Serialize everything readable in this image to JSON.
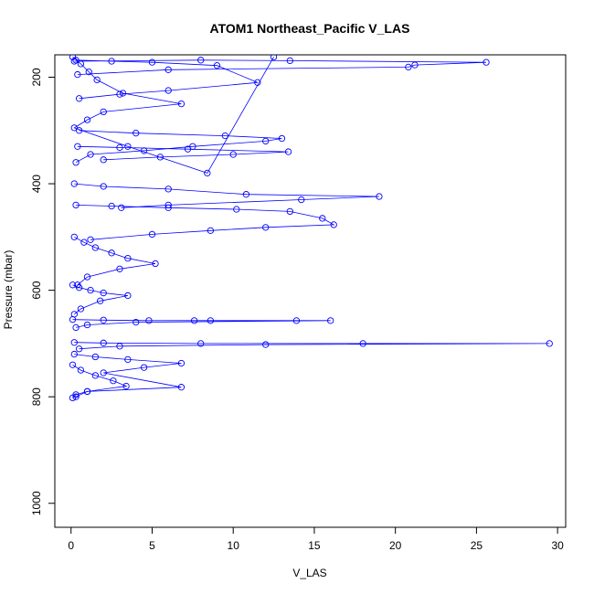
{
  "chart_data": {
    "type": "scatter",
    "title": "ATOM1 Northeast_Pacific V_LAS",
    "xlabel": "V_LAS",
    "ylabel": "Pressure (mbar)",
    "xlim": [
      -1,
      30.5
    ],
    "ylim": [
      1045,
      158
    ],
    "y_reversed": true,
    "x_ticks": [
      "0",
      "5",
      "10",
      "15",
      "20",
      "25",
      "30"
    ],
    "x_tick_values": [
      0,
      5,
      10,
      15,
      20,
      25,
      30
    ],
    "y_ticks": [
      "200",
      "400",
      "600",
      "800",
      "1000"
    ],
    "y_tick_values": [
      200,
      400,
      600,
      800,
      1000
    ],
    "grid": false,
    "legend": "none",
    "series_color": "#0000ff",
    "marker": "open-circle",
    "connected": true,
    "series": [
      {
        "x": [
          0.1,
          0.6,
          1.1,
          1.6,
          3.2,
          6.8,
          2.0,
          1.0,
          0.2,
          3.5,
          8.4,
          12.5
        ],
        "y": [
          162,
          175,
          190,
          205,
          230,
          250,
          265,
          280,
          295,
          330,
          380,
          162
        ]
      },
      {
        "x": [
          0.3,
          2.5,
          5.0,
          9.0,
          11.5,
          6.0,
          3.0,
          0.5
        ],
        "y": [
          168,
          170,
          172,
          178,
          210,
          225,
          232,
          240
        ]
      },
      {
        "x": [
          0.2,
          8.0,
          13.5,
          25.6,
          21.2,
          20.8,
          6.0,
          0.4
        ],
        "y": [
          170,
          168,
          169,
          172,
          177,
          181,
          186,
          195
        ]
      },
      {
        "x": [
          0.5,
          4.0,
          9.5,
          13.0,
          12.0,
          7.5,
          4.5,
          1.2,
          0.3
        ],
        "y": [
          300,
          305,
          310,
          315,
          320,
          330,
          338,
          345,
          360
        ]
      },
      {
        "x": [
          0.4,
          3.0,
          7.2,
          13.4,
          10.0,
          5.5,
          2.0
        ],
        "y": [
          330,
          332,
          335,
          340,
          345,
          350,
          355
        ]
      },
      {
        "x": [
          0.2,
          2.0,
          6.0,
          10.8,
          19.0,
          14.2,
          6.0,
          3.1
        ],
        "y": [
          400,
          405,
          410,
          420,
          424,
          430,
          440,
          445
        ]
      },
      {
        "x": [
          0.3,
          2.5,
          6.0,
          10.2,
          13.5,
          15.5,
          16.2,
          12.0,
          8.6,
          5.0,
          1.2
        ],
        "y": [
          440,
          442,
          445,
          448,
          452,
          465,
          477,
          482,
          488,
          495,
          505
        ]
      },
      {
        "x": [
          0.2,
          0.8,
          1.5,
          2.5,
          3.5,
          5.2,
          3.0,
          1.0,
          0.4
        ],
        "y": [
          500,
          510,
          520,
          530,
          540,
          550,
          560,
          575,
          590
        ]
      },
      {
        "x": [
          0.1,
          0.5,
          1.2,
          2.0,
          3.5,
          1.8,
          0.6,
          0.2
        ],
        "y": [
          590,
          595,
          600,
          605,
          610,
          620,
          635,
          645
        ]
      },
      {
        "x": [
          0.1,
          2.0,
          4.8,
          7.6,
          8.6,
          13.9,
          16.0,
          4.0,
          1.0,
          0.3
        ],
        "y": [
          655,
          656,
          657,
          657,
          657,
          657,
          657,
          660,
          665,
          670
        ]
      },
      {
        "x": [
          0.2,
          2.0,
          8.0,
          18.0,
          29.5,
          12.0,
          3.0,
          0.5
        ],
        "y": [
          698,
          699,
          700,
          700,
          700,
          702,
          705,
          710
        ]
      },
      {
        "x": [
          0.2,
          1.5,
          3.5,
          6.8,
          4.5,
          2.0,
          6.8,
          1.0,
          0.3
        ],
        "y": [
          720,
          725,
          730,
          737,
          745,
          755,
          782,
          790,
          800
        ]
      },
      {
        "x": [
          0.1,
          0.6,
          1.5,
          2.6,
          3.4,
          1.0,
          0.3,
          0.1
        ],
        "y": [
          740,
          750,
          760,
          770,
          780,
          790,
          796,
          802
        ]
      }
    ]
  }
}
